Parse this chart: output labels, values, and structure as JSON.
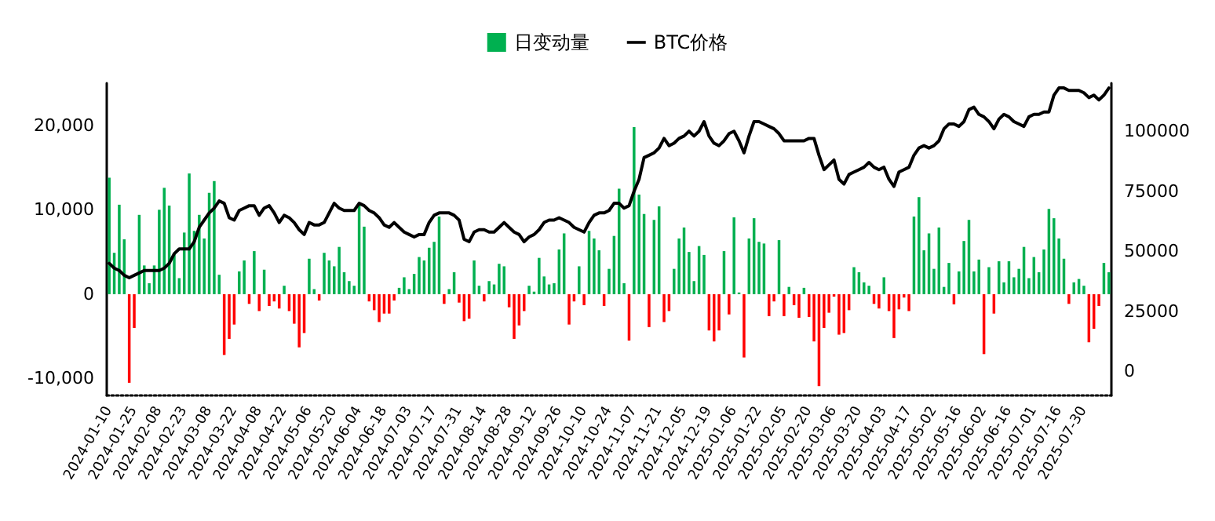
{
  "chart_data": {
    "type": "bar",
    "legend": "top",
    "grid": false,
    "marker": "none",
    "line_style": "solid",
    "categories": [
      "2024-01-10",
      null,
      null,
      null,
      null,
      "2024-01-25",
      null,
      null,
      null,
      null,
      "2024-02-08",
      null,
      null,
      null,
      null,
      "2024-02-23",
      null,
      null,
      null,
      null,
      "2024-03-08",
      null,
      null,
      null,
      null,
      "2024-03-22",
      null,
      null,
      null,
      null,
      "2024-04-08",
      null,
      null,
      null,
      null,
      "2024-04-22",
      null,
      null,
      null,
      null,
      "2024-05-06",
      null,
      null,
      null,
      null,
      "2024-05-20",
      null,
      null,
      null,
      null,
      "2024-06-04",
      null,
      null,
      null,
      null,
      "2024-06-18",
      null,
      null,
      null,
      null,
      "2024-07-03",
      null,
      null,
      null,
      null,
      "2024-07-17",
      null,
      null,
      null,
      null,
      "2024-07-31",
      null,
      null,
      null,
      null,
      "2024-08-14",
      null,
      null,
      null,
      null,
      "2024-08-28",
      null,
      null,
      null,
      null,
      "2024-09-12",
      null,
      null,
      null,
      null,
      "2024-09-26",
      null,
      null,
      null,
      null,
      "2024-10-10",
      null,
      null,
      null,
      null,
      "2024-10-24",
      null,
      null,
      null,
      null,
      "2024-11-07",
      null,
      null,
      null,
      null,
      "2024-11-21",
      null,
      null,
      null,
      null,
      "2024-12-05",
      null,
      null,
      null,
      null,
      "2024-12-19",
      null,
      null,
      null,
      null,
      "2025-01-06",
      null,
      null,
      null,
      null,
      "2025-01-22",
      null,
      null,
      null,
      null,
      "2025-02-05",
      null,
      null,
      null,
      null,
      "2025-02-20",
      null,
      null,
      null,
      null,
      "2025-03-06",
      null,
      null,
      null,
      null,
      "2025-03-20",
      null,
      null,
      null,
      null,
      "2025-04-03",
      null,
      null,
      null,
      null,
      "2025-04-17",
      null,
      null,
      null,
      null,
      "2025-05-02",
      null,
      null,
      null,
      null,
      "2025-05-16",
      null,
      null,
      null,
      null,
      "2025-06-02",
      null,
      null,
      null,
      null,
      "2025-06-16",
      null,
      null,
      null,
      null,
      "2025-07-01",
      null,
      null,
      null,
      null,
      "2025-07-16",
      null,
      null,
      null,
      null,
      "2025-07-30",
      null,
      null,
      null,
      null,
      null
    ],
    "ylim": [
      -12000,
      25000
    ],
    "yticks": [
      {
        "value": -10000,
        "label": "-10,000"
      },
      0,
      {
        "value": 10000,
        "label": "10,000"
      },
      {
        "value": 20000,
        "label": "20,000"
      }
    ],
    "y2lim": [
      -10000,
      120000
    ],
    "y2ticks": [
      0,
      25000,
      50000,
      75000,
      100000
    ],
    "series": [
      {
        "name": "日变动量",
        "color": "#00b050",
        "values": [
          13800,
          4900,
          10600,
          6500,
          -10500,
          -4000,
          9400,
          3400,
          1300,
          3400,
          10000,
          12600,
          10500,
          4900,
          1900,
          7300,
          14300,
          7500,
          9400,
          6600,
          12000,
          13400,
          2300,
          -7200,
          -5300,
          -3600,
          2700,
          4000,
          -1150,
          5100,
          -2000,
          2900,
          -1400,
          -860,
          -1700,
          1000,
          -2000,
          -3500,
          -6300,
          -4600,
          4200,
          600,
          -750,
          4900,
          4000,
          3300,
          5600,
          2600,
          1550,
          1000,
          10600,
          8000,
          -860,
          -1900,
          -3300,
          -2300,
          -2300,
          -750,
          750,
          2000,
          600,
          2400,
          4400,
          4000,
          5500,
          6200,
          9200,
          -1150,
          600,
          2600,
          -1000,
          -3200,
          -2900,
          4000,
          1000,
          -860,
          1550,
          1150,
          3600,
          3300,
          -1550,
          -5300,
          -3700,
          -2000,
          1000,
          300,
          4300,
          2100,
          1150,
          1300,
          5300,
          7200,
          -3600,
          -860,
          3300,
          -1300,
          7500,
          6600,
          5200,
          -1400,
          3000,
          6900,
          12500,
          1300,
          -5500,
          19800,
          11800,
          9500,
          -3900,
          8800,
          10400,
          -3300,
          -2000,
          3000,
          6600,
          7900,
          5000,
          1550,
          5700,
          4650,
          -4300,
          -5600,
          -4300,
          5100,
          -2400,
          9100,
          200,
          -7500,
          6600,
          9000,
          6200,
          6000,
          -2600,
          -860,
          6400,
          -2600,
          860,
          -1300,
          -2800,
          750,
          -2700,
          -5600,
          -10900,
          -4000,
          -2200,
          -290,
          -4800,
          -4600,
          -1900,
          3200,
          2600,
          1400,
          1000,
          -1150,
          -1700,
          2000,
          -2000,
          -5200,
          -1800,
          -400,
          -2000,
          9200,
          11500,
          5200,
          7200,
          3000,
          7900,
          860,
          3700,
          -1200,
          2700,
          6300,
          8800,
          2700,
          4100,
          -7100,
          3200,
          -2300,
          3900,
          1400,
          3900,
          2000,
          3000,
          5600,
          1900,
          4400,
          2600,
          5300,
          10100,
          9000,
          6600,
          4200,
          -1150,
          1400,
          1800,
          1000,
          -5700,
          -4100,
          -1400,
          3700,
          2600
        ],
        "colors": [
          "#00b050",
          "#00b050",
          "#00b050",
          "#00b050",
          "#ff0000",
          "#ff0000",
          "#00b050",
          "#00b050",
          "#00b050",
          "#00b050",
          "#00b050",
          "#00b050",
          "#00b050",
          "#00b050",
          "#00b050",
          "#00b050",
          "#00b050",
          "#00b050",
          "#00b050",
          "#00b050",
          "#00b050",
          "#00b050",
          "#00b050",
          "#ff0000",
          "#ff0000",
          "#ff0000",
          "#00b050",
          "#00b050",
          "#ff0000",
          "#00b050",
          "#ff0000",
          "#00b050",
          "#ff0000",
          "#ff0000",
          "#ff0000",
          "#00b050",
          "#ff0000",
          "#ff0000",
          "#ff0000",
          "#ff0000",
          "#00b050",
          "#00b050",
          "#ff0000",
          "#00b050",
          "#00b050",
          "#00b050",
          "#00b050",
          "#00b050",
          "#00b050",
          "#00b050",
          "#00b050",
          "#00b050",
          "#ff0000",
          "#ff0000",
          "#ff0000",
          "#ff0000",
          "#ff0000",
          "#ff0000",
          "#00b050",
          "#00b050",
          "#00b050",
          "#00b050",
          "#00b050",
          "#00b050",
          "#00b050",
          "#00b050",
          "#00b050",
          "#ff0000",
          "#00b050",
          "#00b050",
          "#ff0000",
          "#ff0000",
          "#ff0000",
          "#00b050",
          "#00b050",
          "#ff0000",
          "#00b050",
          "#00b050",
          "#00b050",
          "#00b050",
          "#ff0000",
          "#ff0000",
          "#ff0000",
          "#ff0000",
          "#00b050",
          "#00b050",
          "#00b050",
          "#00b050",
          "#00b050",
          "#00b050",
          "#00b050",
          "#00b050",
          "#ff0000",
          "#ff0000",
          "#00b050",
          "#ff0000",
          "#00b050",
          "#00b050",
          "#00b050",
          "#ff0000",
          "#00b050",
          "#00b050",
          "#00b050",
          "#00b050",
          "#ff0000",
          "#00b050",
          "#00b050",
          "#00b050",
          "#ff0000",
          "#00b050",
          "#00b050",
          "#ff0000",
          "#ff0000",
          "#00b050",
          "#00b050",
          "#00b050",
          "#00b050",
          "#00b050",
          "#00b050",
          "#00b050",
          "#ff0000",
          "#ff0000",
          "#ff0000",
          "#00b050",
          "#ff0000",
          "#00b050",
          "#00b050",
          "#ff0000",
          "#00b050",
          "#00b050",
          "#00b050",
          "#00b050",
          "#ff0000",
          "#ff0000",
          "#00b050",
          "#ff0000",
          "#00b050",
          "#ff0000",
          "#ff0000",
          "#00b050",
          "#ff0000",
          "#ff0000",
          "#ff0000",
          "#ff0000",
          "#ff0000",
          "#ff0000",
          "#ff0000",
          "#ff0000",
          "#ff0000",
          "#00b050",
          "#00b050",
          "#00b050",
          "#00b050",
          "#ff0000",
          "#ff0000",
          "#00b050",
          "#ff0000",
          "#ff0000",
          "#ff0000",
          "#ff0000",
          "#ff0000",
          "#00b050",
          "#00b050",
          "#00b050",
          "#00b050",
          "#00b050",
          "#00b050",
          "#00b050",
          "#00b050",
          "#ff0000",
          "#00b050",
          "#00b050",
          "#00b050",
          "#00b050",
          "#00b050",
          "#ff0000",
          "#00b050",
          "#ff0000",
          "#00b050",
          "#00b050",
          "#00b050",
          "#00b050",
          "#00b050",
          "#00b050",
          "#00b050",
          "#00b050",
          "#00b050",
          "#00b050",
          "#00b050",
          "#00b050",
          "#00b050",
          "#00b050",
          "#ff0000",
          "#00b050",
          "#00b050",
          "#00b050",
          "#ff0000",
          "#ff0000",
          "#ff0000",
          "#00b050",
          "#00b050"
        ]
      },
      {
        "name": "BTC价格",
        "type": "line",
        "axis": "y2",
        "color": "#000000",
        "values": [
          45000,
          43000,
          42000,
          40000,
          39000,
          40000,
          41000,
          42000,
          42000,
          42000,
          42000,
          43000,
          45000,
          49000,
          51000,
          51000,
          51000,
          54000,
          60000,
          63000,
          66000,
          68000,
          71000,
          70000,
          64000,
          63000,
          67000,
          68000,
          69000,
          69000,
          65000,
          68000,
          69000,
          66000,
          62000,
          65000,
          64000,
          62000,
          59000,
          57000,
          62000,
          61000,
          61000,
          62000,
          66000,
          70000,
          68000,
          67000,
          67000,
          67000,
          70000,
          69000,
          67000,
          66000,
          64000,
          61000,
          60000,
          62000,
          60000,
          58000,
          57000,
          56000,
          57000,
          57000,
          62000,
          65000,
          66000,
          66000,
          66000,
          65000,
          63000,
          55000,
          54000,
          58000,
          59000,
          59000,
          58000,
          58000,
          60000,
          62000,
          60000,
          58000,
          57000,
          54000,
          56000,
          57000,
          59000,
          62000,
          63000,
          63000,
          64000,
          63000,
          62000,
          60000,
          59000,
          58000,
          62000,
          65000,
          66000,
          66000,
          67000,
          70000,
          70000,
          68000,
          69000,
          75000,
          80000,
          89000,
          90000,
          91000,
          93000,
          97000,
          94000,
          95000,
          97000,
          98000,
          100000,
          98000,
          100000,
          104000,
          98000,
          95000,
          94000,
          96000,
          99000,
          100000,
          96000,
          91000,
          98000,
          104000,
          104000,
          103000,
          102000,
          101000,
          99000,
          96000,
          96000,
          96000,
          96000,
          96000,
          97000,
          97000,
          90000,
          84000,
          86000,
          88000,
          80000,
          78000,
          82000,
          83000,
          84000,
          85000,
          87000,
          85000,
          84000,
          85000,
          80000,
          77000,
          83000,
          84000,
          85000,
          90000,
          93000,
          94000,
          93000,
          94000,
          96000,
          101000,
          103000,
          103000,
          102000,
          104000,
          109000,
          110000,
          107000,
          106000,
          104000,
          101000,
          105000,
          107000,
          106000,
          104000,
          103000,
          102000,
          106000,
          107000,
          107000,
          108000,
          108000,
          115000,
          118000,
          118000,
          117000,
          117000,
          117000,
          116000,
          114000,
          115000,
          113000,
          115000,
          118000
        ]
      }
    ]
  }
}
